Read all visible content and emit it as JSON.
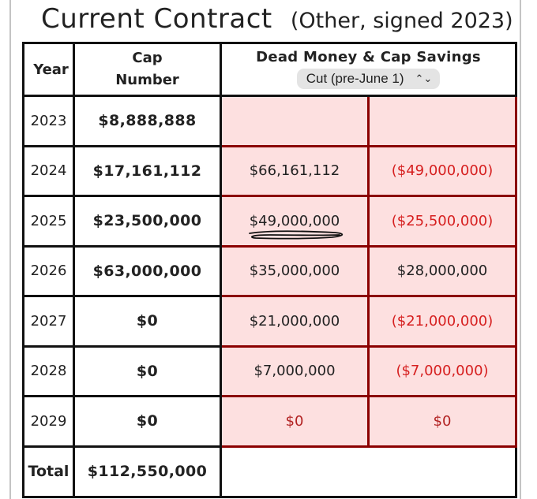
{
  "header": {
    "title": "Current Contract",
    "subtitle": "(Other, signed 2023)"
  },
  "table": {
    "col_year": "Year",
    "col_cap_line1": "Cap",
    "col_cap_line2": "Number",
    "col_dead_money": "Dead Money & Cap Savings",
    "scenario_select": "Cut (pre-June 1)",
    "rows": [
      {
        "year": "2023",
        "cap": "$8,888,888",
        "dead": "",
        "savings": ""
      },
      {
        "year": "2024",
        "cap": "$17,161,112",
        "dead": "$66,161,112",
        "savings": "($49,000,000)"
      },
      {
        "year": "2025",
        "cap": "$23,500,000",
        "dead": "$49,000,000",
        "savings": "($25,500,000)"
      },
      {
        "year": "2026",
        "cap": "$63,000,000",
        "dead": "$35,000,000",
        "savings": "$28,000,000"
      },
      {
        "year": "2027",
        "cap": "$0",
        "dead": "$21,000,000",
        "savings": "($21,000,000)"
      },
      {
        "year": "2028",
        "cap": "$0",
        "dead": "$7,000,000",
        "savings": "($7,000,000)"
      },
      {
        "year": "2029",
        "cap": "$0",
        "dead": "$0",
        "savings": "$0"
      }
    ],
    "total_label": "Total",
    "total_value": "$112,550,000"
  },
  "colors": {
    "cell_pink": "#fde0e0",
    "cell_border_red": "#8b0000",
    "negative_text": "#d61f1f"
  }
}
